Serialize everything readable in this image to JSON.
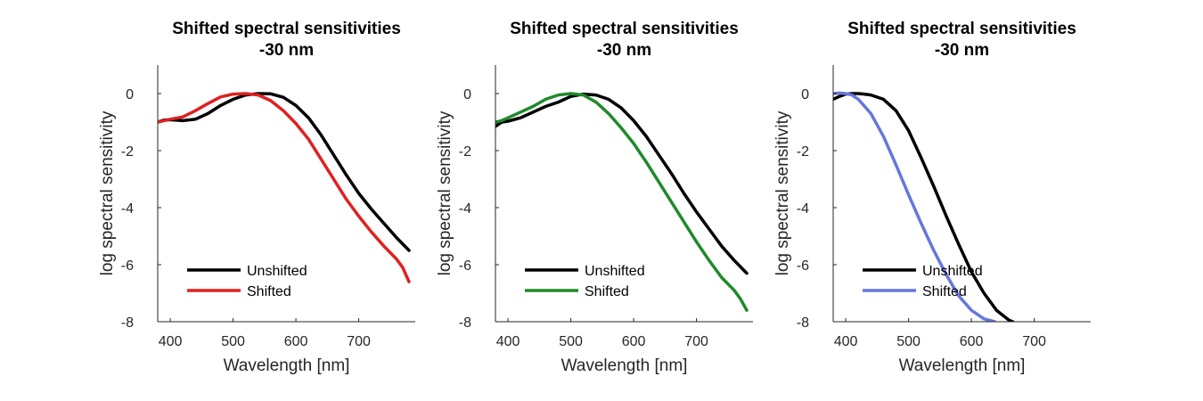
{
  "chart_data": [
    {
      "type": "line",
      "title": "Shifted spectral sensitivities",
      "subtitle": "-30 nm",
      "xlabel": "Wavelength [nm]",
      "ylabel": "log spectral sensitivity",
      "xlim": [
        380,
        790
      ],
      "ylim": [
        -8,
        1
      ],
      "xticks": [
        400,
        500,
        600,
        700
      ],
      "yticks": [
        -8,
        -6,
        -4,
        -2,
        0
      ],
      "grid": false,
      "legend": "bottom-left",
      "series": [
        {
          "name": "Unshifted",
          "color": "#000000",
          "x": [
            380,
            390,
            400,
            420,
            440,
            460,
            480,
            500,
            520,
            540,
            560,
            580,
            600,
            620,
            640,
            660,
            680,
            700,
            720,
            740,
            760,
            780
          ],
          "y": [
            -1.0,
            -0.93,
            -0.92,
            -0.95,
            -0.9,
            -0.7,
            -0.42,
            -0.2,
            -0.05,
            0.0,
            -0.01,
            -0.13,
            -0.42,
            -0.85,
            -1.45,
            -2.15,
            -2.85,
            -3.5,
            -4.05,
            -4.55,
            -5.05,
            -5.5
          ]
        },
        {
          "name": "Shifted",
          "color": "#e02020",
          "x": [
            380,
            390,
            400,
            420,
            440,
            460,
            480,
            500,
            520,
            540,
            560,
            580,
            600,
            620,
            640,
            660,
            680,
            700,
            720,
            740,
            760,
            770,
            780
          ],
          "y": [
            -1.0,
            -0.95,
            -0.9,
            -0.82,
            -0.6,
            -0.35,
            -0.12,
            -0.02,
            0.0,
            -0.05,
            -0.25,
            -0.6,
            -1.05,
            -1.6,
            -2.3,
            -3.0,
            -3.7,
            -4.3,
            -4.85,
            -5.35,
            -5.8,
            -6.1,
            -6.6
          ]
        }
      ]
    },
    {
      "type": "line",
      "title": "Shifted spectral sensitivities",
      "subtitle": "-30 nm",
      "xlabel": "Wavelength [nm]",
      "ylabel": "log spectral sensitivity",
      "xlim": [
        380,
        790
      ],
      "ylim": [
        -8,
        1
      ],
      "xticks": [
        400,
        500,
        600,
        700
      ],
      "yticks": [
        -8,
        -6,
        -4,
        -2,
        0
      ],
      "grid": false,
      "legend": "bottom-left",
      "series": [
        {
          "name": "Unshifted",
          "color": "#000000",
          "x": [
            380,
            390,
            400,
            420,
            440,
            460,
            480,
            500,
            520,
            540,
            560,
            580,
            600,
            620,
            640,
            660,
            680,
            700,
            720,
            740,
            760,
            780
          ],
          "y": [
            -1.15,
            -1.0,
            -0.97,
            -0.85,
            -0.65,
            -0.45,
            -0.3,
            -0.1,
            -0.02,
            -0.05,
            -0.2,
            -0.5,
            -0.95,
            -1.5,
            -2.15,
            -2.8,
            -3.5,
            -4.15,
            -4.75,
            -5.35,
            -5.85,
            -6.3
          ]
        },
        {
          "name": "Shifted",
          "color": "#1f8a2a",
          "x": [
            380,
            390,
            400,
            420,
            440,
            460,
            480,
            500,
            520,
            540,
            560,
            580,
            600,
            620,
            640,
            660,
            680,
            700,
            720,
            740,
            760,
            770,
            780
          ],
          "y": [
            -1.0,
            -0.95,
            -0.85,
            -0.65,
            -0.45,
            -0.2,
            -0.05,
            0.0,
            -0.05,
            -0.3,
            -0.7,
            -1.2,
            -1.75,
            -2.4,
            -3.1,
            -3.8,
            -4.5,
            -5.2,
            -5.85,
            -6.45,
            -6.9,
            -7.2,
            -7.6
          ]
        }
      ]
    },
    {
      "type": "line",
      "title": "Shifted spectral sensitivities",
      "subtitle": "-30 nm",
      "xlabel": "Wavelength [nm]",
      "ylabel": "log spectral sensitivity",
      "xlim": [
        380,
        790
      ],
      "ylim": [
        -8,
        1
      ],
      "xticks": [
        400,
        500,
        600,
        700
      ],
      "yticks": [
        -8,
        -6,
        -4,
        -2,
        0
      ],
      "grid": false,
      "legend": "bottom-left",
      "series": [
        {
          "name": "Unshifted",
          "color": "#000000",
          "x": [
            380,
            390,
            400,
            410,
            420,
            430,
            440,
            460,
            480,
            500,
            520,
            540,
            560,
            580,
            600,
            620,
            640,
            660,
            666
          ],
          "y": [
            -0.2,
            -0.1,
            -0.02,
            0.0,
            0.0,
            -0.02,
            -0.05,
            -0.2,
            -0.6,
            -1.3,
            -2.25,
            -3.25,
            -4.3,
            -5.3,
            -6.25,
            -7.0,
            -7.6,
            -7.95,
            -8.0
          ]
        },
        {
          "name": "Shifted",
          "color": "#6677e0",
          "x": [
            380,
            390,
            400,
            410,
            420,
            440,
            460,
            480,
            500,
            520,
            540,
            560,
            580,
            600,
            620,
            637
          ],
          "y": [
            0.0,
            0.02,
            0.0,
            -0.05,
            -0.2,
            -0.7,
            -1.5,
            -2.5,
            -3.55,
            -4.55,
            -5.5,
            -6.35,
            -7.1,
            -7.6,
            -7.9,
            -8.0
          ]
        }
      ]
    }
  ]
}
